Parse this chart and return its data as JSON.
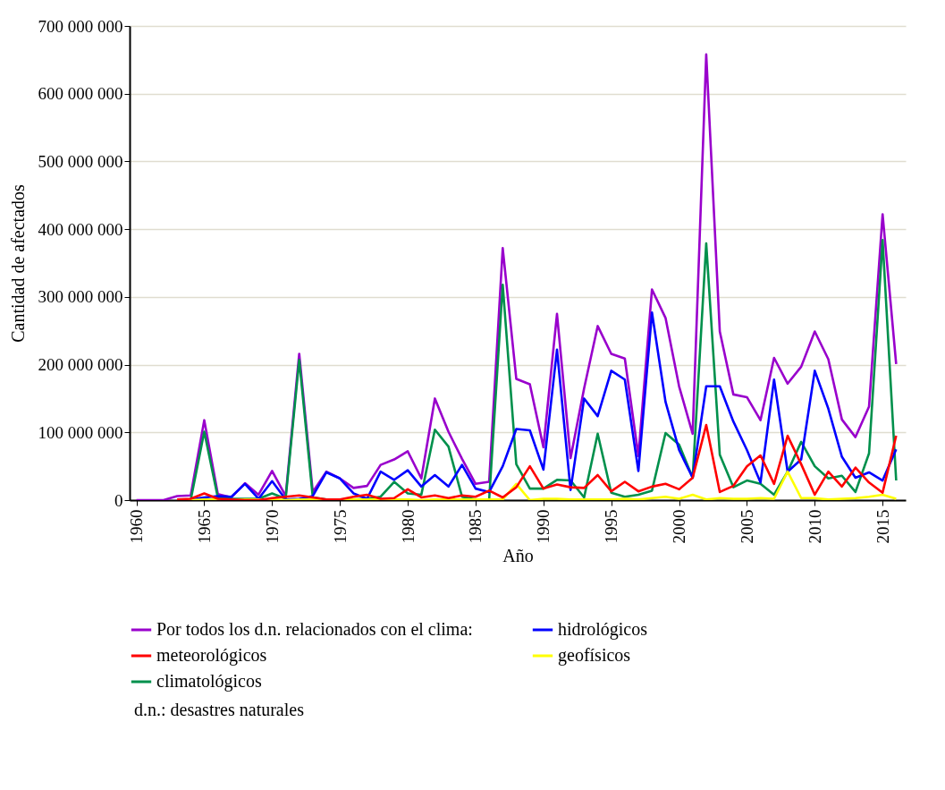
{
  "chart_data": {
    "type": "line",
    "xlabel": "Año",
    "ylabel": "Cantidad de afectados",
    "x": [
      1960,
      1961,
      1962,
      1963,
      1964,
      1965,
      1966,
      1967,
      1968,
      1969,
      1970,
      1971,
      1972,
      1973,
      1974,
      1975,
      1976,
      1977,
      1978,
      1979,
      1980,
      1981,
      1982,
      1983,
      1984,
      1985,
      1986,
      1987,
      1988,
      1989,
      1990,
      1991,
      1992,
      1993,
      1994,
      1995,
      1996,
      1997,
      1998,
      1999,
      2000,
      2001,
      2002,
      2003,
      2004,
      2005,
      2006,
      2007,
      2008,
      2009,
      2010,
      2011,
      2012,
      2013,
      2014,
      2015,
      2016
    ],
    "series": [
      {
        "name": "Por todos los d.n. relacionados con el clima:",
        "color": "#9900cc",
        "values": [
          0,
          0,
          0,
          6000000,
          7000000,
          118000000,
          9000000,
          4000000,
          25000000,
          8000000,
          43000000,
          6000000,
          216000000,
          12000000,
          42000000,
          32000000,
          18000000,
          21000000,
          52000000,
          60000000,
          72000000,
          32000000,
          150000000,
          101000000,
          61000000,
          24000000,
          27000000,
          372000000,
          179000000,
          171000000,
          78000000,
          275000000,
          62000000,
          165000000,
          257000000,
          216000000,
          209000000,
          65000000,
          311000000,
          269000000,
          168000000,
          98000000,
          658000000,
          249000000,
          156000000,
          152000000,
          118000000,
          210000000,
          172000000,
          197000000,
          249000000,
          208000000,
          119000000,
          93000000,
          138000000,
          422000000,
          201000000
        ]
      },
      {
        "name": "meteorológicos",
        "color": "#ff0000",
        "values": [
          null,
          null,
          null,
          1000000,
          2000000,
          10000000,
          2000000,
          1000000,
          0,
          0,
          3000000,
          5000000,
          7000000,
          4000000,
          1000000,
          1000000,
          5000000,
          8000000,
          2000000,
          3000000,
          16000000,
          4000000,
          7000000,
          3000000,
          7000000,
          5000000,
          14000000,
          4000000,
          19000000,
          50000000,
          17000000,
          23000000,
          19000000,
          18000000,
          37000000,
          13000000,
          27000000,
          13000000,
          20000000,
          24000000,
          16000000,
          33000000,
          111000000,
          12000000,
          21000000,
          50000000,
          66000000,
          24000000,
          95000000,
          53000000,
          8000000,
          42000000,
          20000000,
          48000000,
          26000000,
          11000000,
          95000000
        ]
      },
      {
        "name": "climatológicos",
        "color": "#00904c",
        "values": [
          null,
          null,
          null,
          0,
          0,
          101000000,
          4000000,
          2000000,
          2000000,
          2000000,
          10000000,
          2000000,
          207000000,
          4000000,
          1000000,
          1000000,
          1000000,
          2000000,
          5000000,
          27000000,
          10000000,
          8000000,
          104000000,
          79000000,
          5000000,
          1000000,
          1000000,
          318000000,
          53000000,
          17000000,
          17000000,
          30000000,
          29000000,
          4000000,
          98000000,
          11000000,
          5000000,
          8000000,
          14000000,
          99000000,
          82000000,
          33000000,
          379000000,
          67000000,
          19000000,
          29000000,
          24000000,
          8000000,
          42000000,
          86000000,
          50000000,
          32000000,
          36000000,
          12000000,
          69000000,
          384000000,
          29000000
        ]
      },
      {
        "name": "hidrológicos",
        "color": "#0000ff",
        "values": [
          null,
          null,
          null,
          0,
          1000000,
          4000000,
          6000000,
          5000000,
          24000000,
          2000000,
          28000000,
          1000000,
          2000000,
          6000000,
          41000000,
          32000000,
          10000000,
          2000000,
          42000000,
          30000000,
          44000000,
          20000000,
          37000000,
          20000000,
          52000000,
          17000000,
          12000000,
          50000000,
          105000000,
          103000000,
          45000000,
          222000000,
          15000000,
          150000000,
          124000000,
          191000000,
          178000000,
          43000000,
          277000000,
          145000000,
          74000000,
          33000000,
          168000000,
          168000000,
          116000000,
          74000000,
          26000000,
          178000000,
          42000000,
          60000000,
          191000000,
          135000000,
          64000000,
          33000000,
          41000000,
          29000000,
          75000000
        ]
      },
      {
        "name": "geofísicos",
        "color": "#ffff00",
        "values": [
          null,
          null,
          null,
          0,
          0,
          1000000,
          1000000,
          0,
          1000000,
          1000000,
          1000000,
          0,
          1000000,
          1000000,
          0,
          0,
          1000000,
          1000000,
          1000000,
          1000000,
          1000000,
          0,
          1000000,
          1000000,
          1000000,
          1000000,
          1000000,
          1000000,
          24000000,
          0,
          2000000,
          2000000,
          1000000,
          1000000,
          1000000,
          1000000,
          2000000,
          1000000,
          3000000,
          5000000,
          2000000,
          8000000,
          1000000,
          3000000,
          2000000,
          2000000,
          3000000,
          2000000,
          42000000,
          3000000,
          3000000,
          1000000,
          2000000,
          3000000,
          5000000,
          8000000,
          2000000
        ]
      }
    ],
    "xlim": [
      1959.5,
      2016.7
    ],
    "xticks": [
      1960,
      1965,
      1970,
      1975,
      1980,
      1985,
      1990,
      1995,
      2000,
      2005,
      2010,
      2015
    ],
    "ylim": [
      0,
      700000000
    ],
    "yticks": [
      {
        "value": 0,
        "label": "0"
      },
      {
        "value": 100000000,
        "label": "100 000 000"
      },
      {
        "value": 200000000,
        "label": "200 000 000"
      },
      {
        "value": 300000000,
        "label": "300 000 000"
      },
      {
        "value": 400000000,
        "label": "400 000 000"
      },
      {
        "value": 500000000,
        "label": "500 000 000"
      },
      {
        "value": 600000000,
        "label": "600 000 000"
      },
      {
        "value": 700000000,
        "label": "700 000 000"
      }
    ],
    "grid": "y",
    "legend": "bottom",
    "line_style": "solid",
    "marker": "none",
    "annotations": [
      "d.n.: desastres naturales"
    ]
  }
}
